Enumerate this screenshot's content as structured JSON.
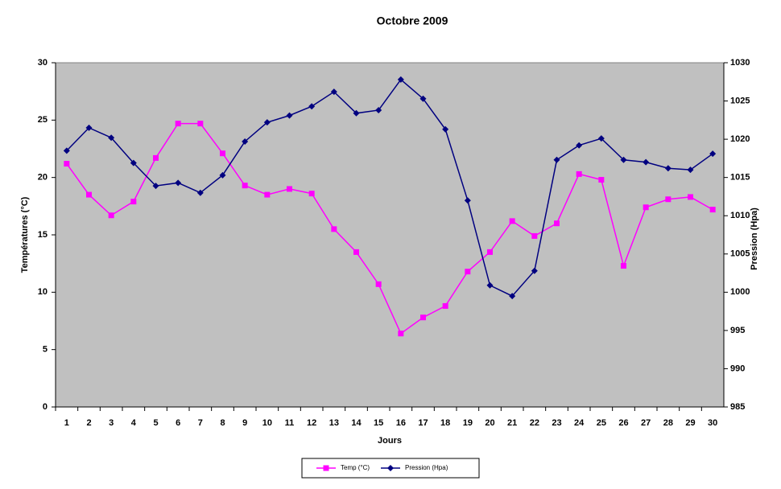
{
  "chart_data": {
    "type": "line",
    "title": "Octobre 2009",
    "x_label": "Jours",
    "y_label": "Températures (°C)",
    "y2_label": "Pression (Hpa)",
    "categories": [
      "1",
      "2",
      "3",
      "4",
      "5",
      "6",
      "7",
      "8",
      "9",
      "10",
      "11",
      "12",
      "13",
      "14",
      "15",
      "16",
      "17",
      "18",
      "19",
      "20",
      "21",
      "22",
      "23",
      "24",
      "25",
      "26",
      "27",
      "28",
      "29",
      "30"
    ],
    "series": [
      {
        "name": "Temp (°C)",
        "color": "#ff00ff",
        "marker": "square",
        "values": [
          21.2,
          18.5,
          16.7,
          17.9,
          21.7,
          24.7,
          24.7,
          22.1,
          19.3,
          18.5,
          19.0,
          18.6,
          15.5,
          13.5,
          10.7,
          6.4,
          7.8,
          8.8,
          11.8,
          13.5,
          16.2,
          14.9,
          16.0,
          20.3,
          19.8,
          12.3,
          17.4,
          18.1,
          18.3,
          17.2
        ]
      },
      {
        "name": "Pression (Hpa)",
        "color": "#000080",
        "marker": "diamond",
        "axis": "y2",
        "values": [
          1018.5,
          1021.5,
          1020.2,
          1016.9,
          1013.9,
          1014.3,
          1013.0,
          1015.3,
          1019.7,
          1022.2,
          1023.1,
          1024.3,
          1026.2,
          1023.4,
          1023.8,
          1027.8,
          1025.3,
          1021.3,
          1012.0,
          1000.9,
          999.5,
          1002.8,
          1017.3,
          1019.2,
          1020.1,
          1017.3,
          1017.0,
          1016.2,
          1016.0,
          1018.1
        ]
      }
    ],
    "ylim": [
      0,
      30
    ],
    "yticks": [
      0,
      5,
      10,
      15,
      20,
      25,
      30
    ],
    "y2lim": [
      985,
      1030
    ],
    "y2ticks": [
      985,
      990,
      995,
      1000,
      1005,
      1010,
      1015,
      1020,
      1025,
      1030
    ],
    "grid": false,
    "legend": "bottom",
    "plot_background": "#c0c0c0"
  }
}
